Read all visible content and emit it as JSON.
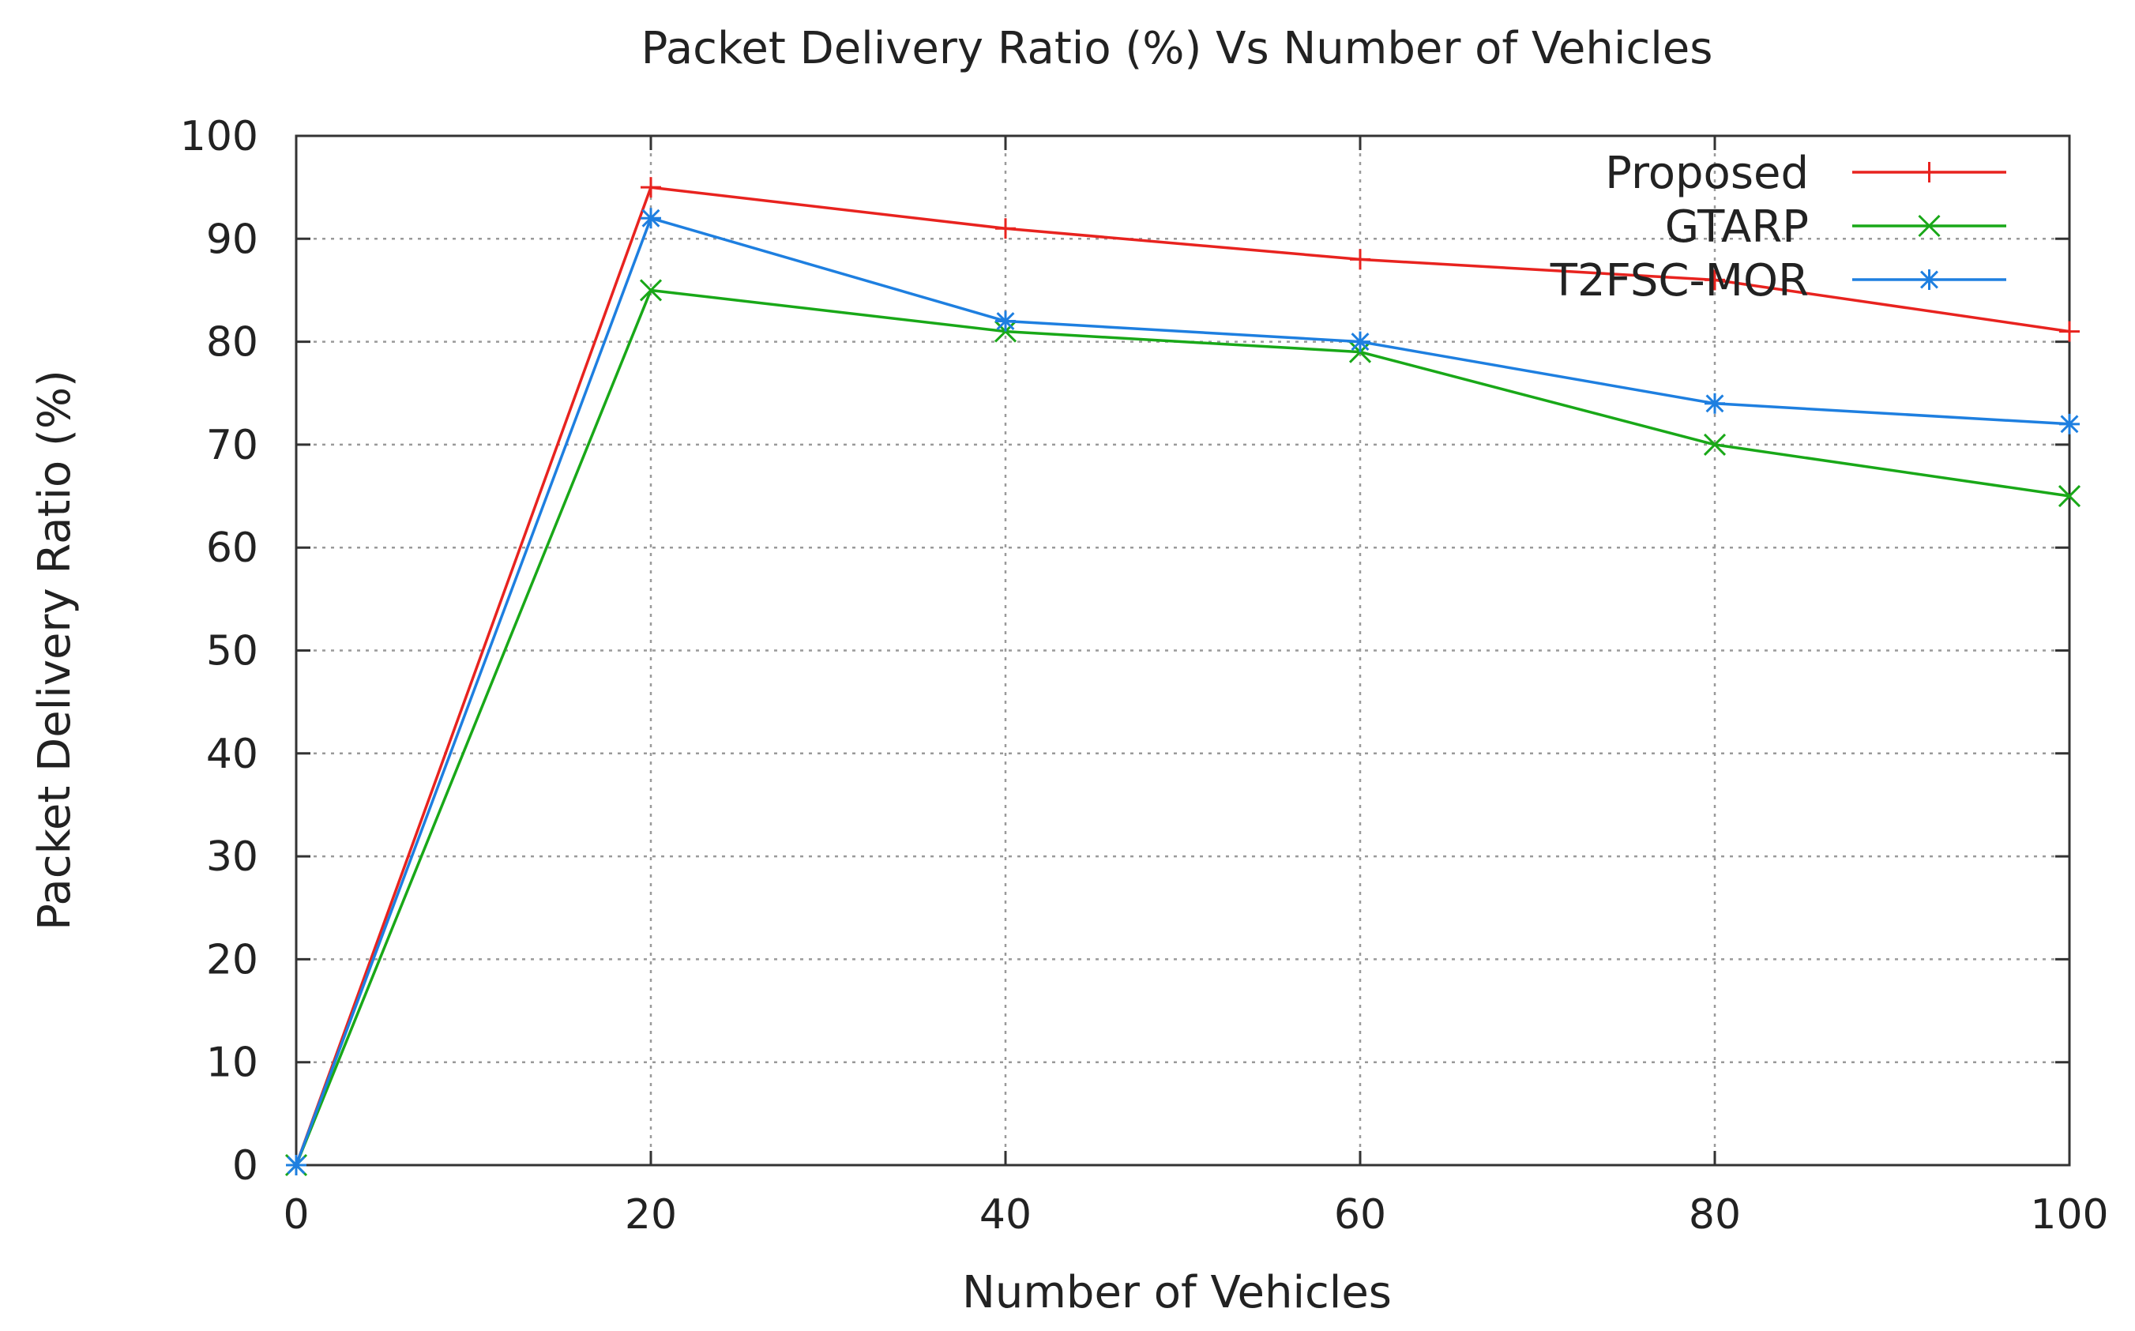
{
  "chart_data": {
    "type": "line",
    "title": "Packet Delivery Ratio (%) Vs Number of Vehicles",
    "xlabel": "Number of Vehicles",
    "ylabel": "Packet Delivery Ratio (%)",
    "xlim": [
      0,
      100
    ],
    "ylim": [
      0,
      100
    ],
    "x_ticks": [
      "0",
      "20",
      "40",
      "60",
      "80",
      "100"
    ],
    "y_ticks": [
      "0",
      "10",
      "20",
      "30",
      "40",
      "50",
      "60",
      "70",
      "80",
      "90",
      "100"
    ],
    "grid": true,
    "legend_position": "top-right",
    "x": [
      0,
      20,
      40,
      60,
      80,
      100
    ],
    "series": [
      {
        "name": "Proposed",
        "values": [
          0,
          95,
          91,
          88,
          86,
          81
        ],
        "color": "#e8231f",
        "marker": "plus"
      },
      {
        "name": "GTARP",
        "values": [
          0,
          85,
          81,
          79,
          70,
          65
        ],
        "color": "#19a818",
        "marker": "cross"
      },
      {
        "name": "T2FSC-MOR",
        "values": [
          0,
          92,
          82,
          80,
          74,
          72
        ],
        "color": "#1e7fe0",
        "marker": "star"
      }
    ]
  }
}
